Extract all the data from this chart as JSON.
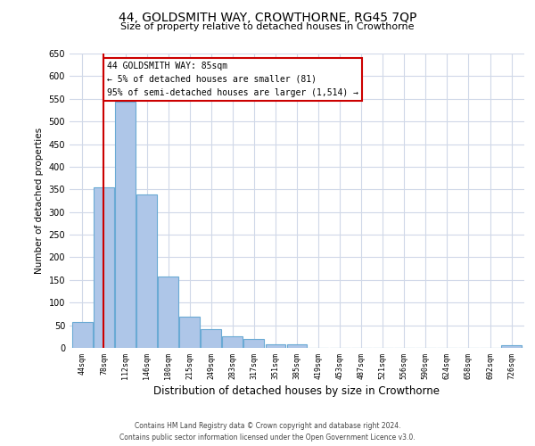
{
  "title": "44, GOLDSMITH WAY, CROWTHORNE, RG45 7QP",
  "subtitle": "Size of property relative to detached houses in Crowthorne",
  "xlabel": "Distribution of detached houses by size in Crowthorne",
  "ylabel": "Number of detached properties",
  "bar_labels": [
    "44sqm",
    "78sqm",
    "112sqm",
    "146sqm",
    "180sqm",
    "215sqm",
    "249sqm",
    "283sqm",
    "317sqm",
    "351sqm",
    "385sqm",
    "419sqm",
    "453sqm",
    "487sqm",
    "521sqm",
    "556sqm",
    "590sqm",
    "624sqm",
    "658sqm",
    "692sqm",
    "726sqm"
  ],
  "bar_values": [
    58,
    355,
    543,
    338,
    158,
    68,
    42,
    25,
    20,
    8,
    8,
    0,
    0,
    0,
    0,
    0,
    0,
    0,
    0,
    0,
    5
  ],
  "bar_color": "#aec6e8",
  "bar_edgecolor": "#6aaad4",
  "redline_x": 1.0,
  "annotation_title": "44 GOLDSMITH WAY: 85sqm",
  "annotation_line1": "← 5% of detached houses are smaller (81)",
  "annotation_line2": "95% of semi-detached houses are larger (1,514) →",
  "annotation_box_color": "#ffffff",
  "annotation_box_edgecolor": "#cc0000",
  "redline_color": "#cc0000",
  "ylim": [
    0,
    650
  ],
  "yticks": [
    0,
    50,
    100,
    150,
    200,
    250,
    300,
    350,
    400,
    450,
    500,
    550,
    600,
    650
  ],
  "footer_line1": "Contains HM Land Registry data © Crown copyright and database right 2024.",
  "footer_line2": "Contains public sector information licensed under the Open Government Licence v3.0.",
  "bg_color": "#ffffff",
  "grid_color": "#d0d8e8"
}
